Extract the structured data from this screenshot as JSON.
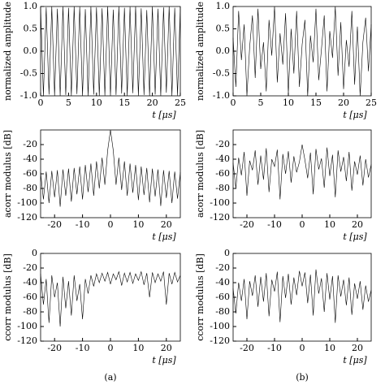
{
  "chart_data": [
    {
      "type": "line",
      "xlabel": "t [μs]",
      "ylabel": "normalized amplitude",
      "x": [
        0,
        0.5,
        1,
        1.5,
        2,
        2.5,
        3,
        3.5,
        4,
        4.5,
        5,
        5.5,
        6,
        6.5,
        7,
        7.5,
        8,
        8.5,
        9,
        9.5,
        10,
        10.5,
        11,
        11.5,
        12,
        12.5,
        13,
        13.5,
        14,
        14.5,
        15,
        15.5,
        16,
        16.5,
        17,
        17.5,
        18,
        18.5,
        19,
        19.5,
        20,
        20.5,
        21,
        21.5,
        22,
        22.5,
        23,
        23.5,
        24,
        24.5,
        25
      ],
      "values": [
        1,
        -1,
        0.98,
        -0.97,
        1,
        -1,
        0.95,
        -1,
        1,
        -0.98,
        0.97,
        -1,
        1,
        -0.96,
        0.99,
        -1,
        0.94,
        -1,
        1,
        -0.97,
        0.98,
        -1,
        0.96,
        -0.99,
        1,
        -1,
        0.93,
        -0.98,
        1,
        -0.95,
        0.97,
        -1,
        0.99,
        -0.94,
        1,
        -1,
        0.96,
        -0.98,
        0.92,
        -1,
        1,
        -0.97,
        0.95,
        -1,
        0.98,
        -0.93,
        1,
        -1,
        0.97,
        -0.99,
        1
      ],
      "color": "#000000",
      "xlim": [
        0,
        25
      ],
      "xticks": [
        0,
        5,
        10,
        15,
        20,
        25
      ],
      "ylim": [
        -1,
        1
      ],
      "yticks": [
        {
          "value": -1,
          "label": "-1.0"
        },
        {
          "value": -0.5,
          "label": "-0.5"
        },
        {
          "value": 0,
          "label": "0.0"
        },
        {
          "value": 0.5,
          "label": "0.5"
        },
        {
          "value": 1,
          "label": "1.0"
        }
      ]
    },
    {
      "type": "line",
      "xlabel": "t [μs]",
      "ylabel": "normalized amplitude",
      "x": [
        0,
        0.5,
        1,
        1.5,
        2,
        2.5,
        3,
        3.5,
        4,
        4.5,
        5,
        5.5,
        6,
        6.5,
        7,
        7.5,
        8,
        8.5,
        9,
        9.5,
        10,
        10.5,
        11,
        11.5,
        12,
        12.5,
        13,
        13.5,
        14,
        14.5,
        15,
        15.5,
        16,
        16.5,
        17,
        17.5,
        18,
        18.5,
        19,
        19.5,
        20,
        20.5,
        21,
        21.5,
        22,
        22.5,
        23,
        23.5,
        24,
        24.5,
        25
      ],
      "values": [
        0.3,
        -0.8,
        0.9,
        -0.2,
        0.6,
        -1,
        0.1,
        0.8,
        -0.6,
        0.95,
        -0.4,
        0.2,
        -0.9,
        0.7,
        -0.1,
        1,
        -0.7,
        0.4,
        -0.3,
        0.85,
        -0.95,
        0.5,
        -0.5,
        0.9,
        -0.8,
        0.15,
        0.7,
        -1,
        0.35,
        -0.25,
        0.95,
        -0.65,
        0.05,
        0.8,
        -0.9,
        0.45,
        -0.15,
        1,
        -0.55,
        0.65,
        -0.85,
        0.25,
        -0.35,
        0.9,
        -0.75,
        0.55,
        -1,
        0.2,
        0.75,
        -0.45,
        0.6
      ],
      "color": "#000000",
      "xlim": [
        0,
        25
      ],
      "xticks": [
        0,
        5,
        10,
        15,
        20,
        25
      ],
      "ylim": [
        -1,
        1
      ],
      "yticks": [
        {
          "value": -1,
          "label": "-1.0"
        },
        {
          "value": -0.5,
          "label": "-0.5"
        },
        {
          "value": 0,
          "label": "0.0"
        },
        {
          "value": 0.5,
          "label": "0.5"
        },
        {
          "value": 1,
          "label": "1.0"
        }
      ]
    },
    {
      "type": "line",
      "xlabel": "t [μs]",
      "ylabel": "acorr modulus [dB]",
      "x": [
        -25,
        -24,
        -23,
        -22,
        -21,
        -20,
        -19,
        -18,
        -17,
        -16,
        -15,
        -14,
        -13,
        -12,
        -11,
        -10,
        -9,
        -8,
        -7,
        -6,
        -5,
        -4,
        -3,
        -2,
        -1,
        0,
        1,
        2,
        3,
        4,
        5,
        6,
        7,
        8,
        9,
        10,
        11,
        12,
        13,
        14,
        15,
        16,
        17,
        18,
        19,
        20,
        21,
        22,
        23,
        24,
        25
      ],
      "values": [
        -58,
        -95,
        -57,
        -100,
        -56,
        -92,
        -55,
        -105,
        -54,
        -90,
        -53,
        -98,
        -52,
        -88,
        -50,
        -95,
        -48,
        -85,
        -46,
        -90,
        -43,
        -80,
        -38,
        -75,
        -28,
        0,
        -28,
        -75,
        -38,
        -82,
        -43,
        -90,
        -46,
        -86,
        -48,
        -96,
        -50,
        -89,
        -52,
        -99,
        -53,
        -91,
        -54,
        -104,
        -55,
        -93,
        -56,
        -100,
        -57,
        -94,
        -58
      ],
      "color": "#000000",
      "xlim": [
        -25,
        25
      ],
      "xticks": [
        -20,
        -10,
        0,
        10,
        20
      ],
      "ylim": [
        -120,
        0
      ],
      "yticks": [
        -120,
        -100,
        -80,
        -60,
        -40,
        -20
      ]
    },
    {
      "type": "line",
      "xlabel": "t [μs]",
      "ylabel": "acorr modulus [dB]",
      "x": [
        -25,
        -24,
        -23,
        -22,
        -21,
        -20,
        -19,
        -18,
        -17,
        -16,
        -15,
        -14,
        -13,
        -12,
        -11,
        -10,
        -9,
        -8,
        -7,
        -6,
        -5,
        -4,
        -3,
        -2,
        -1,
        0,
        1,
        2,
        3,
        4,
        5,
        6,
        7,
        8,
        9,
        10,
        11,
        12,
        13,
        14,
        15,
        16,
        17,
        18,
        19,
        20,
        21,
        22,
        23,
        24,
        25
      ],
      "values": [
        -45,
        -80,
        -38,
        -62,
        -30,
        -90,
        -42,
        -55,
        -28,
        -75,
        -35,
        -68,
        -25,
        -85,
        -40,
        -50,
        -27,
        -95,
        -33,
        -60,
        -29,
        -72,
        -36,
        -58,
        -44,
        -20,
        -41,
        -66,
        -31,
        -88,
        -26,
        -54,
        -39,
        -79,
        -24,
        -63,
        -34,
        -92,
        -28,
        -57,
        -37,
        -70,
        -30,
        -83,
        -43,
        -61,
        -35,
        -76,
        -40,
        -65,
        -47
      ],
      "color": "#000000",
      "xlim": [
        -25,
        25
      ],
      "xticks": [
        -20,
        -10,
        0,
        10,
        20
      ],
      "ylim": [
        -120,
        0
      ],
      "yticks": [
        -120,
        -100,
        -80,
        -60,
        -40,
        -20
      ]
    },
    {
      "type": "line",
      "xlabel": "t [μs]",
      "ylabel": "ccorr modulus [dB]",
      "x": [
        -25,
        -24,
        -23,
        -22,
        -21,
        -20,
        -19,
        -18,
        -17,
        -16,
        -15,
        -14,
        -13,
        -12,
        -11,
        -10,
        -9,
        -8,
        -7,
        -6,
        -5,
        -4,
        -3,
        -2,
        -1,
        0,
        1,
        2,
        3,
        4,
        5,
        6,
        7,
        8,
        9,
        10,
        11,
        12,
        13,
        14,
        15,
        16,
        17,
        18,
        19,
        20,
        21,
        22,
        23,
        24,
        25
      ],
      "values": [
        -28,
        -70,
        -35,
        -95,
        -30,
        -60,
        -40,
        -100,
        -32,
        -75,
        -38,
        -85,
        -30,
        -65,
        -42,
        -90,
        -35,
        -55,
        -30,
        -45,
        -28,
        -40,
        -27,
        -38,
        -26,
        -42,
        -28,
        -36,
        -25,
        -44,
        -27,
        -39,
        -26,
        -41,
        -28,
        -37,
        -25,
        -43,
        -27,
        -60,
        -26,
        -40,
        -28,
        -38,
        -25,
        -70,
        -27,
        -42,
        -26,
        -39,
        -30
      ],
      "color": "#000000",
      "xlim": [
        -25,
        25
      ],
      "xticks": [
        -20,
        -10,
        0,
        10,
        20
      ],
      "ylim": [
        -120,
        0
      ],
      "yticks": [
        -120,
        -100,
        -80,
        -60,
        -40,
        -20,
        0
      ]
    },
    {
      "type": "line",
      "xlabel": "t [μs]",
      "ylabel": "ccorr modulus [dB]",
      "x": [
        -25,
        -24,
        -23,
        -22,
        -21,
        -20,
        -19,
        -18,
        -17,
        -16,
        -15,
        -14,
        -13,
        -12,
        -11,
        -10,
        -9,
        -8,
        -7,
        -6,
        -5,
        -4,
        -3,
        -2,
        -1,
        0,
        1,
        2,
        3,
        4,
        5,
        6,
        7,
        8,
        9,
        10,
        11,
        12,
        13,
        14,
        15,
        16,
        17,
        18,
        19,
        20,
        21,
        22,
        23,
        24,
        25
      ],
      "values": [
        -48,
        -82,
        -40,
        -65,
        -35,
        -90,
        -38,
        -58,
        -30,
        -73,
        -32,
        -66,
        -27,
        -86,
        -36,
        -52,
        -25,
        -94,
        -31,
        -61,
        -28,
        -70,
        -33,
        -57,
        -24,
        -45,
        -26,
        -68,
        -29,
        -85,
        -22,
        -55,
        -34,
        -80,
        -27,
        -63,
        -31,
        -95,
        -30,
        -59,
        -36,
        -71,
        -33,
        -84,
        -41,
        -62,
        -38,
        -77,
        -44,
        -66,
        -50
      ],
      "color": "#000000",
      "xlim": [
        -25,
        25
      ],
      "xticks": [
        -20,
        -10,
        0,
        10,
        20
      ],
      "ylim": [
        -120,
        0
      ],
      "yticks": [
        -120,
        -100,
        -80,
        -60,
        -40,
        -20,
        0
      ]
    }
  ],
  "captions": [
    "(a)",
    "(b)"
  ]
}
